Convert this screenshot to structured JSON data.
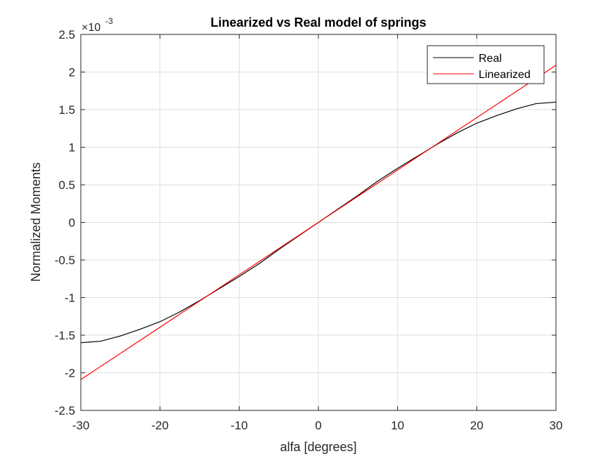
{
  "chart_data": {
    "type": "line",
    "title": "Linearized vs Real model of springs",
    "xlabel": "alfa [degrees]",
    "ylabel": "Normalized Moments",
    "y_exponent_label": "×10",
    "y_exponent_power": "-3",
    "xlim": [
      -30,
      30
    ],
    "ylim": [
      -2.5,
      2.5
    ],
    "xticks": [
      -30,
      -20,
      -10,
      0,
      10,
      20,
      30
    ],
    "xtick_labels": [
      "-30",
      "-20",
      "-10",
      "0",
      "10",
      "20",
      "30"
    ],
    "yticks": [
      -2.5,
      -2,
      -1.5,
      -1,
      -0.5,
      0,
      0.5,
      1,
      1.5,
      2,
      2.5
    ],
    "ytick_labels": [
      "-2.5",
      "-2",
      "-1.5",
      "-1",
      "-0.5",
      "0",
      "0.5",
      "1",
      "1.5",
      "2",
      "2.5"
    ],
    "grid": true,
    "legend_position": "top-right",
    "series": [
      {
        "name": "Real",
        "color": "#000000",
        "x": [
          -30,
          -27.5,
          -25,
          -22.5,
          -20,
          -17.5,
          -15,
          -12.5,
          -10,
          -7.5,
          -5,
          -2.5,
          0,
          2.5,
          5,
          7.5,
          10,
          12.5,
          15,
          17.5,
          20,
          22.5,
          25,
          27.5,
          30
        ],
        "y": [
          -1.6,
          -1.58,
          -1.51,
          -1.42,
          -1.32,
          -1.19,
          -1.04,
          -0.88,
          -0.72,
          -0.55,
          -0.36,
          -0.18,
          0,
          0.18,
          0.36,
          0.55,
          0.72,
          0.88,
          1.04,
          1.19,
          1.32,
          1.42,
          1.51,
          1.58,
          1.6
        ]
      },
      {
        "name": "Linearized",
        "color": "#ff0000",
        "x": [
          -30,
          30
        ],
        "y": [
          -2.09,
          2.09
        ]
      }
    ]
  }
}
